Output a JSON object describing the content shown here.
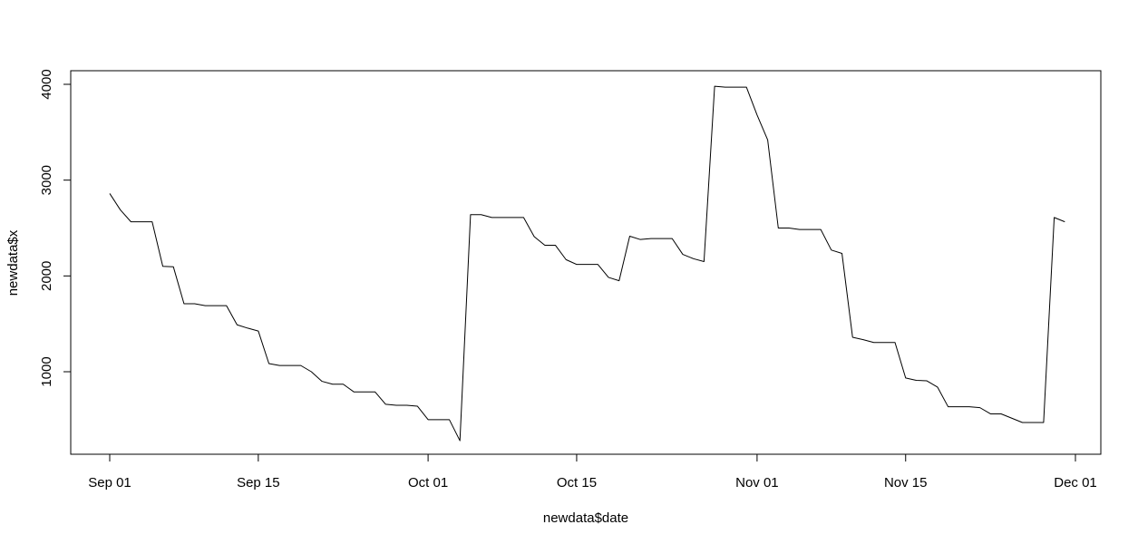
{
  "chart_data": {
    "type": "line",
    "title": "",
    "xlabel": "newdata$date",
    "ylabel": "newdata$x",
    "xlim": [
      "2023-09-01",
      "2023-12-01"
    ],
    "ylim": [
      140,
      4140
    ],
    "grid": false,
    "line_color": "#000000",
    "x_ticks": [
      {
        "date": "2023-09-01",
        "label": "Sep 01"
      },
      {
        "date": "2023-09-15",
        "label": "Sep 15"
      },
      {
        "date": "2023-10-01",
        "label": "Oct 01"
      },
      {
        "date": "2023-10-15",
        "label": "Oct 15"
      },
      {
        "date": "2023-11-01",
        "label": "Nov 01"
      },
      {
        "date": "2023-11-15",
        "label": "Nov 15"
      },
      {
        "date": "2023-12-01",
        "label": "Dec 01"
      }
    ],
    "y_ticks": [
      {
        "value": 1000,
        "label": "1000"
      },
      {
        "value": 2000,
        "label": "2000"
      },
      {
        "value": 3000,
        "label": "3000"
      },
      {
        "value": 4000,
        "label": "4000"
      }
    ],
    "series": [
      {
        "points": [
          [
            "2023-09-01",
            2860
          ],
          [
            "2023-09-02",
            2690
          ],
          [
            "2023-09-03",
            2565
          ],
          [
            "2023-09-04",
            2565
          ],
          [
            "2023-09-05",
            2565
          ],
          [
            "2023-09-06",
            2100
          ],
          [
            "2023-09-07",
            2095
          ],
          [
            "2023-09-08",
            1710
          ],
          [
            "2023-09-09",
            1710
          ],
          [
            "2023-09-10",
            1690
          ],
          [
            "2023-09-11",
            1690
          ],
          [
            "2023-09-12",
            1690
          ],
          [
            "2023-09-13",
            1490
          ],
          [
            "2023-09-14",
            1455
          ],
          [
            "2023-09-15",
            1425
          ],
          [
            "2023-09-16",
            1085
          ],
          [
            "2023-09-17",
            1065
          ],
          [
            "2023-09-18",
            1065
          ],
          [
            "2023-09-19",
            1065
          ],
          [
            "2023-09-20",
            1000
          ],
          [
            "2023-09-21",
            900
          ],
          [
            "2023-09-22",
            870
          ],
          [
            "2023-09-23",
            870
          ],
          [
            "2023-09-24",
            790
          ],
          [
            "2023-09-25",
            790
          ],
          [
            "2023-09-26",
            790
          ],
          [
            "2023-09-27",
            660
          ],
          [
            "2023-09-28",
            650
          ],
          [
            "2023-09-29",
            650
          ],
          [
            "2023-09-30",
            640
          ],
          [
            "2023-10-01",
            500
          ],
          [
            "2023-10-02",
            500
          ],
          [
            "2023-10-03",
            500
          ],
          [
            "2023-10-04",
            280
          ],
          [
            "2023-10-05",
            2640
          ],
          [
            "2023-10-06",
            2640
          ],
          [
            "2023-10-07",
            2610
          ],
          [
            "2023-10-08",
            2610
          ],
          [
            "2023-10-09",
            2610
          ],
          [
            "2023-10-10",
            2610
          ],
          [
            "2023-10-11",
            2410
          ],
          [
            "2023-10-12",
            2320
          ],
          [
            "2023-10-13",
            2320
          ],
          [
            "2023-10-14",
            2170
          ],
          [
            "2023-10-15",
            2120
          ],
          [
            "2023-10-16",
            2120
          ],
          [
            "2023-10-17",
            2120
          ],
          [
            "2023-10-18",
            1985
          ],
          [
            "2023-10-19",
            1950
          ],
          [
            "2023-10-20",
            2415
          ],
          [
            "2023-10-21",
            2380
          ],
          [
            "2023-10-22",
            2390
          ],
          [
            "2023-10-23",
            2390
          ],
          [
            "2023-10-24",
            2390
          ],
          [
            "2023-10-25",
            2225
          ],
          [
            "2023-10-26",
            2180
          ],
          [
            "2023-10-27",
            2150
          ],
          [
            "2023-10-28",
            3980
          ],
          [
            "2023-10-29",
            3970
          ],
          [
            "2023-10-30",
            3970
          ],
          [
            "2023-10-31",
            3970
          ],
          [
            "2023-11-01",
            3680
          ],
          [
            "2023-11-02",
            3420
          ],
          [
            "2023-11-03",
            2500
          ],
          [
            "2023-11-04",
            2500
          ],
          [
            "2023-11-05",
            2485
          ],
          [
            "2023-11-06",
            2485
          ],
          [
            "2023-11-07",
            2485
          ],
          [
            "2023-11-08",
            2270
          ],
          [
            "2023-11-09",
            2235
          ],
          [
            "2023-11-10",
            1360
          ],
          [
            "2023-11-11",
            1335
          ],
          [
            "2023-11-12",
            1305
          ],
          [
            "2023-11-13",
            1305
          ],
          [
            "2023-11-14",
            1305
          ],
          [
            "2023-11-15",
            935
          ],
          [
            "2023-11-16",
            910
          ],
          [
            "2023-11-17",
            905
          ],
          [
            "2023-11-18",
            840
          ],
          [
            "2023-11-19",
            635
          ],
          [
            "2023-11-20",
            635
          ],
          [
            "2023-11-21",
            635
          ],
          [
            "2023-11-22",
            625
          ],
          [
            "2023-11-23",
            560
          ],
          [
            "2023-11-24",
            560
          ],
          [
            "2023-11-25",
            515
          ],
          [
            "2023-11-26",
            470
          ],
          [
            "2023-11-27",
            470
          ],
          [
            "2023-11-28",
            470
          ],
          [
            "2023-11-29",
            2610
          ],
          [
            "2023-11-30",
            2565
          ]
        ]
      }
    ]
  }
}
